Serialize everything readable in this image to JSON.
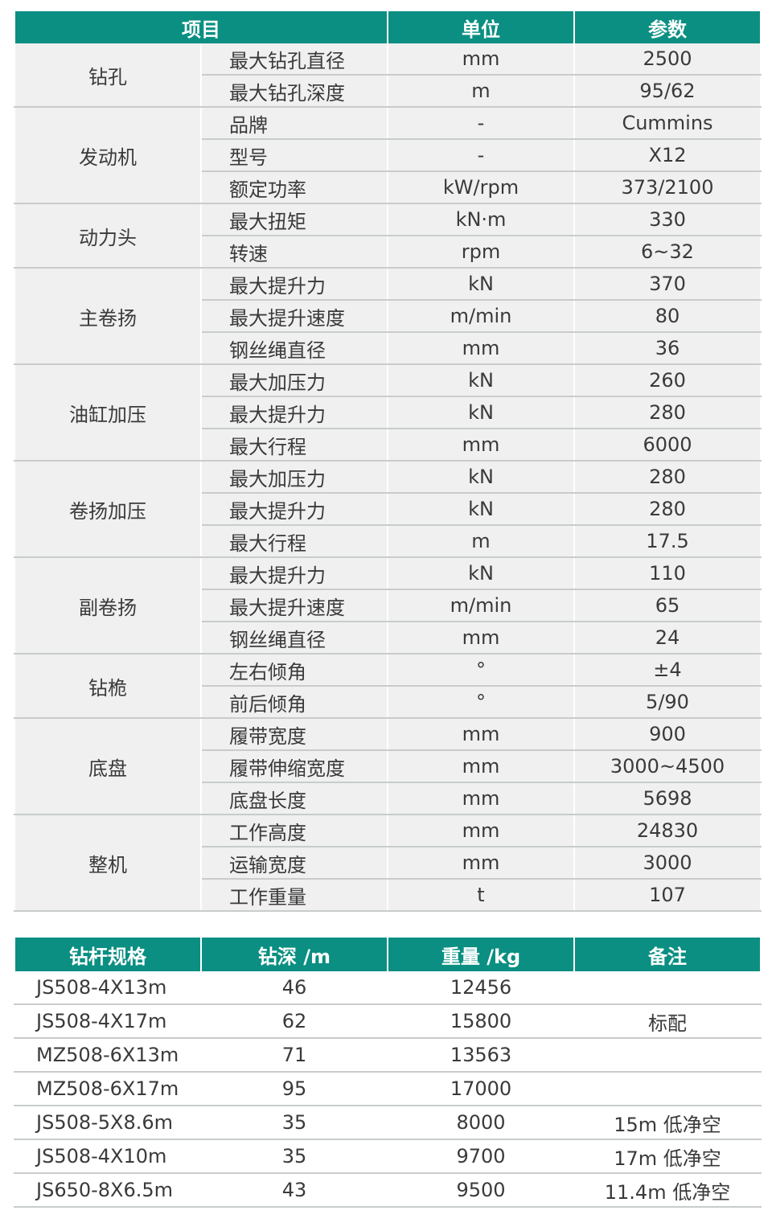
{
  "spec_table": {
    "headers": {
      "item": "项目",
      "unit": "单位",
      "value": "参数"
    },
    "groups": [
      {
        "name": "钻孔",
        "rows": [
          [
            "最大钻孔直径",
            "mm",
            "2500"
          ],
          [
            "最大钻孔深度",
            "m",
            "95/62"
          ]
        ]
      },
      {
        "name": "发动机",
        "rows": [
          [
            "品牌",
            "-",
            "Cummins"
          ],
          [
            "型号",
            "-",
            "X12"
          ],
          [
            "额定功率",
            "kW/rpm",
            "373/2100"
          ]
        ]
      },
      {
        "name": "动力头",
        "rows": [
          [
            "最大扭矩",
            "kN·m",
            "330"
          ],
          [
            "转速",
            "rpm",
            "6~32"
          ]
        ]
      },
      {
        "name": "主卷扬",
        "rows": [
          [
            "最大提升力",
            "kN",
            "370"
          ],
          [
            "最大提升速度",
            "m/min",
            "80"
          ],
          [
            "钢丝绳直径",
            "mm",
            "36"
          ]
        ]
      },
      {
        "name": "油缸加压",
        "rows": [
          [
            "最大加压力",
            "kN",
            "260"
          ],
          [
            "最大提升力",
            "kN",
            "280"
          ],
          [
            "最大行程",
            "mm",
            "6000"
          ]
        ]
      },
      {
        "name": "卷扬加压",
        "rows": [
          [
            "最大加压力",
            "kN",
            "280"
          ],
          [
            "最大提升力",
            "kN",
            "280"
          ],
          [
            "最大行程",
            "m",
            "17.5"
          ]
        ]
      },
      {
        "name": "副卷扬",
        "rows": [
          [
            "最大提升力",
            "kN",
            "110"
          ],
          [
            "最大提升速度",
            "m/min",
            "65"
          ],
          [
            "钢丝绳直径",
            "mm",
            "24"
          ]
        ]
      },
      {
        "name": "钻桅",
        "rows": [
          [
            "左右倾角",
            "°",
            "±4"
          ],
          [
            "前后倾角",
            "°",
            "5/90"
          ]
        ]
      },
      {
        "name": "底盘",
        "rows": [
          [
            "履带宽度",
            "mm",
            "900"
          ],
          [
            "履带伸缩宽度",
            "mm",
            "3000~4500"
          ],
          [
            "底盘长度",
            "mm",
            "5698"
          ]
        ]
      },
      {
        "name": "整机",
        "rows": [
          [
            "工作高度",
            "mm",
            "24830"
          ],
          [
            "运输宽度",
            "mm",
            "3000"
          ],
          [
            "工作重量",
            "t",
            "107"
          ]
        ]
      }
    ]
  },
  "rod_table": {
    "headers": [
      "钻杆规格",
      "钻深 /m",
      "重量 /kg",
      "备注"
    ],
    "rows": [
      [
        "JS508-4X13m",
        "46",
        "12456",
        ""
      ],
      [
        "JS508-4X17m",
        "62",
        "15800",
        "标配"
      ],
      [
        "MZ508-6X13m",
        "71",
        "13563",
        ""
      ],
      [
        "MZ508-6X17m",
        "95",
        "17000",
        ""
      ],
      [
        "JS508-5X8.6m",
        "35",
        "8000",
        "15m 低净空"
      ],
      [
        "JS508-4X10m",
        "35",
        "9700",
        "17m 低净空"
      ],
      [
        "JS650-8X6.5m",
        "43",
        "9500",
        "11.4m 低净空"
      ]
    ]
  },
  "colors": {
    "header_bg": "#0a8f82",
    "body_bg": "#f0f0f0",
    "row_line": "#c9cccc"
  }
}
